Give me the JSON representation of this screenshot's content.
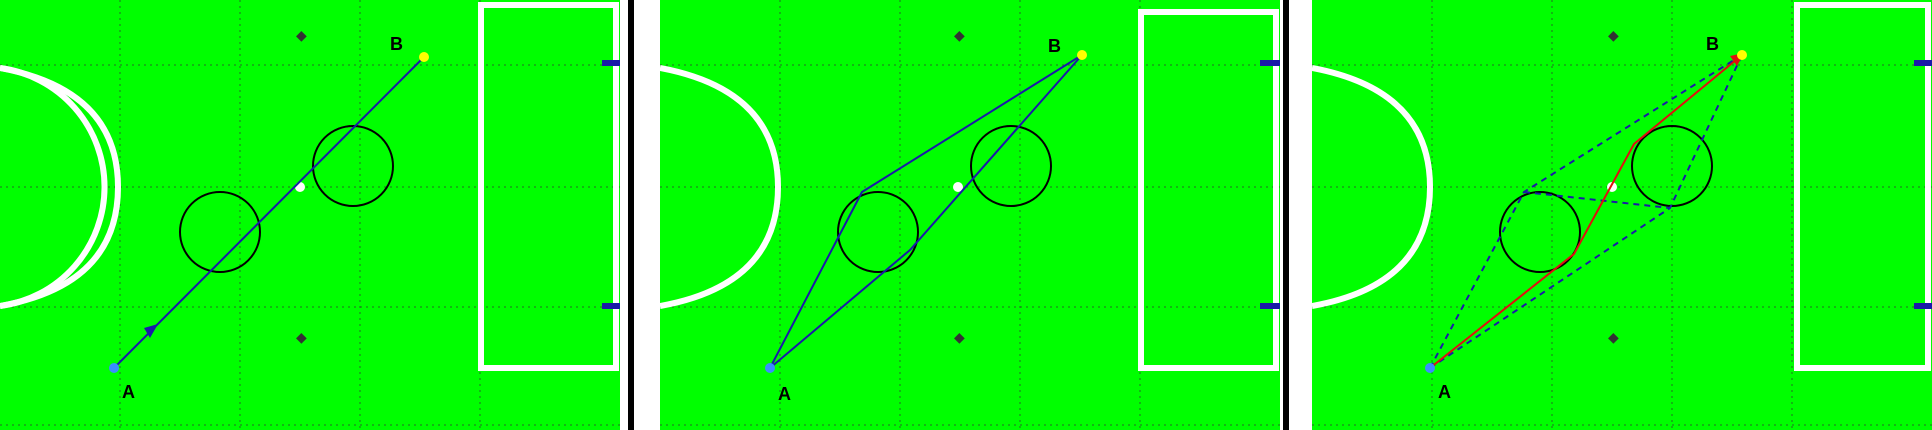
{
  "colors": {
    "field": "#00ff00",
    "field_line": "#ffffff",
    "grid": "#333333",
    "path_blue": "#1a1aa8",
    "path_red": "#e01010",
    "obstacle": "#000000",
    "start_marker": "#3b8cff",
    "goal_marker": "#ffff00",
    "goal_post": "#1a1aa8",
    "divider": "#000000"
  },
  "labels": {
    "start": "A",
    "goal": "B"
  },
  "panels": [
    {
      "id": "straight-path"
    },
    {
      "id": "tangent-paths"
    },
    {
      "id": "selected-path"
    }
  ]
}
